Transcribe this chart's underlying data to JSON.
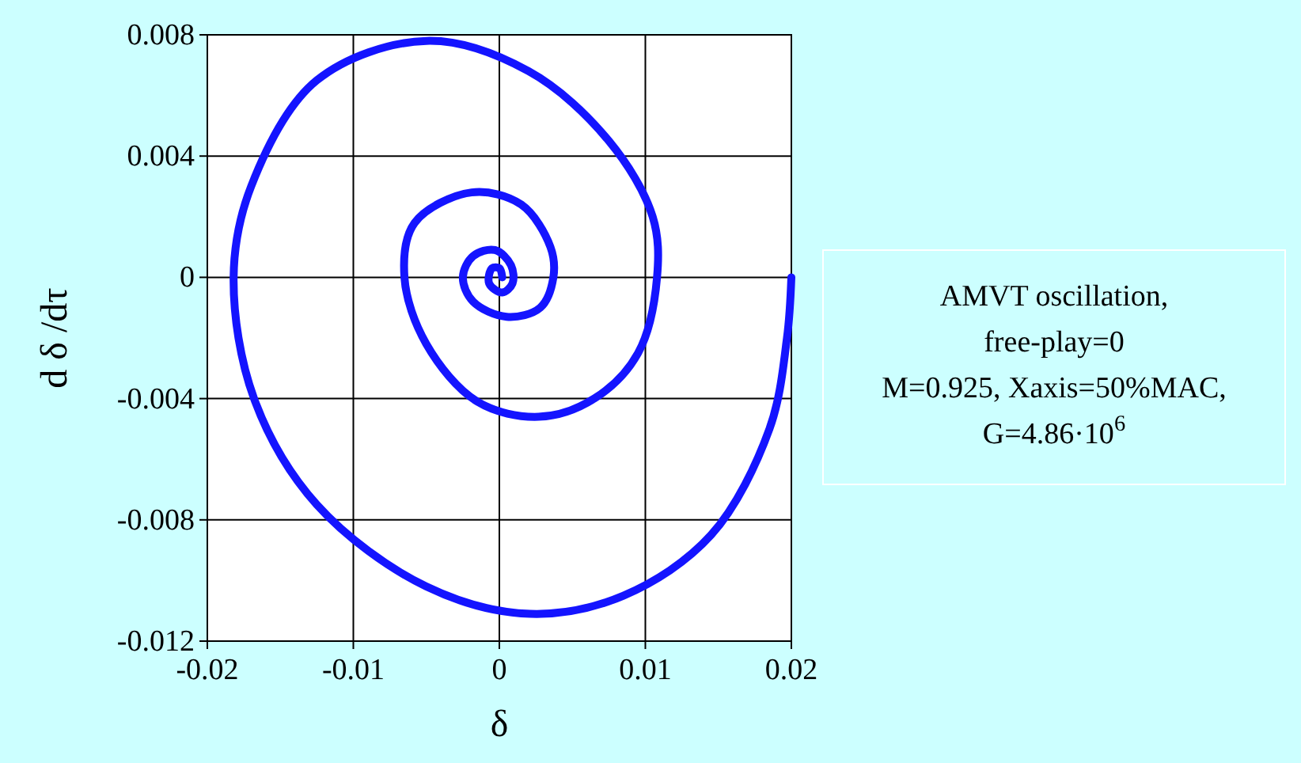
{
  "chart_data": {
    "type": "line",
    "xlabel": "δ",
    "ylabel": "d δ /dτ",
    "xlim": [
      -0.02,
      0.02
    ],
    "xticks": [
      -0.02,
      -0.01,
      0,
      0.01,
      0.02
    ],
    "ylim": [
      -0.012,
      0.008
    ],
    "yticks": [
      -0.012,
      -0.008,
      -0.004,
      0,
      0.004,
      0.008
    ],
    "grid": true,
    "marker": "none",
    "line_style": "solid",
    "annotations": [
      "AMVT oscillation,",
      "free-play=0",
      "M=0.925, Xaxis=50%MAC,",
      "G=4.86·10$^{6}$"
    ],
    "series": [
      {
        "color": "#1414ff",
        "x": [
          0.02,
          0.0197,
          0.0185,
          0.0145,
          0.0085,
          0.0021,
          -0.005,
          -0.0125,
          -0.0168,
          -0.0182,
          -0.017,
          -0.0125,
          -0.005,
          0.002,
          0.0075,
          0.0105,
          0.0108,
          0.0095,
          0.0065,
          0.0027,
          -0.0015,
          -0.005,
          -0.0065,
          -0.0058,
          -0.0019,
          0.0015,
          0.0035,
          0.0037,
          0.0028,
          0.0005,
          -0.0018,
          -0.0025,
          -0.0018,
          -0.0003,
          0.0008,
          0.0009,
          0.0002,
          -0.0007,
          -0.0005,
          0,
          0.0002
        ],
        "values": [
          0,
          -0.002,
          -0.005,
          -0.0085,
          -0.0105,
          -0.0111,
          -0.0102,
          -0.0075,
          -0.004,
          0,
          0.003,
          0.0065,
          0.0078,
          0.0068,
          0.0045,
          0.002,
          0,
          -0.0025,
          -0.004,
          -0.0046,
          -0.0041,
          -0.0022,
          0,
          0.0018,
          0.0028,
          0.0024,
          0.001,
          0,
          -0.001,
          -0.0013,
          -0.0008,
          0,
          0.0007,
          0.0009,
          0.0004,
          -0.0002,
          -0.0005,
          -0.0002,
          0.0003,
          0.0003,
          0
        ]
      }
    ]
  }
}
